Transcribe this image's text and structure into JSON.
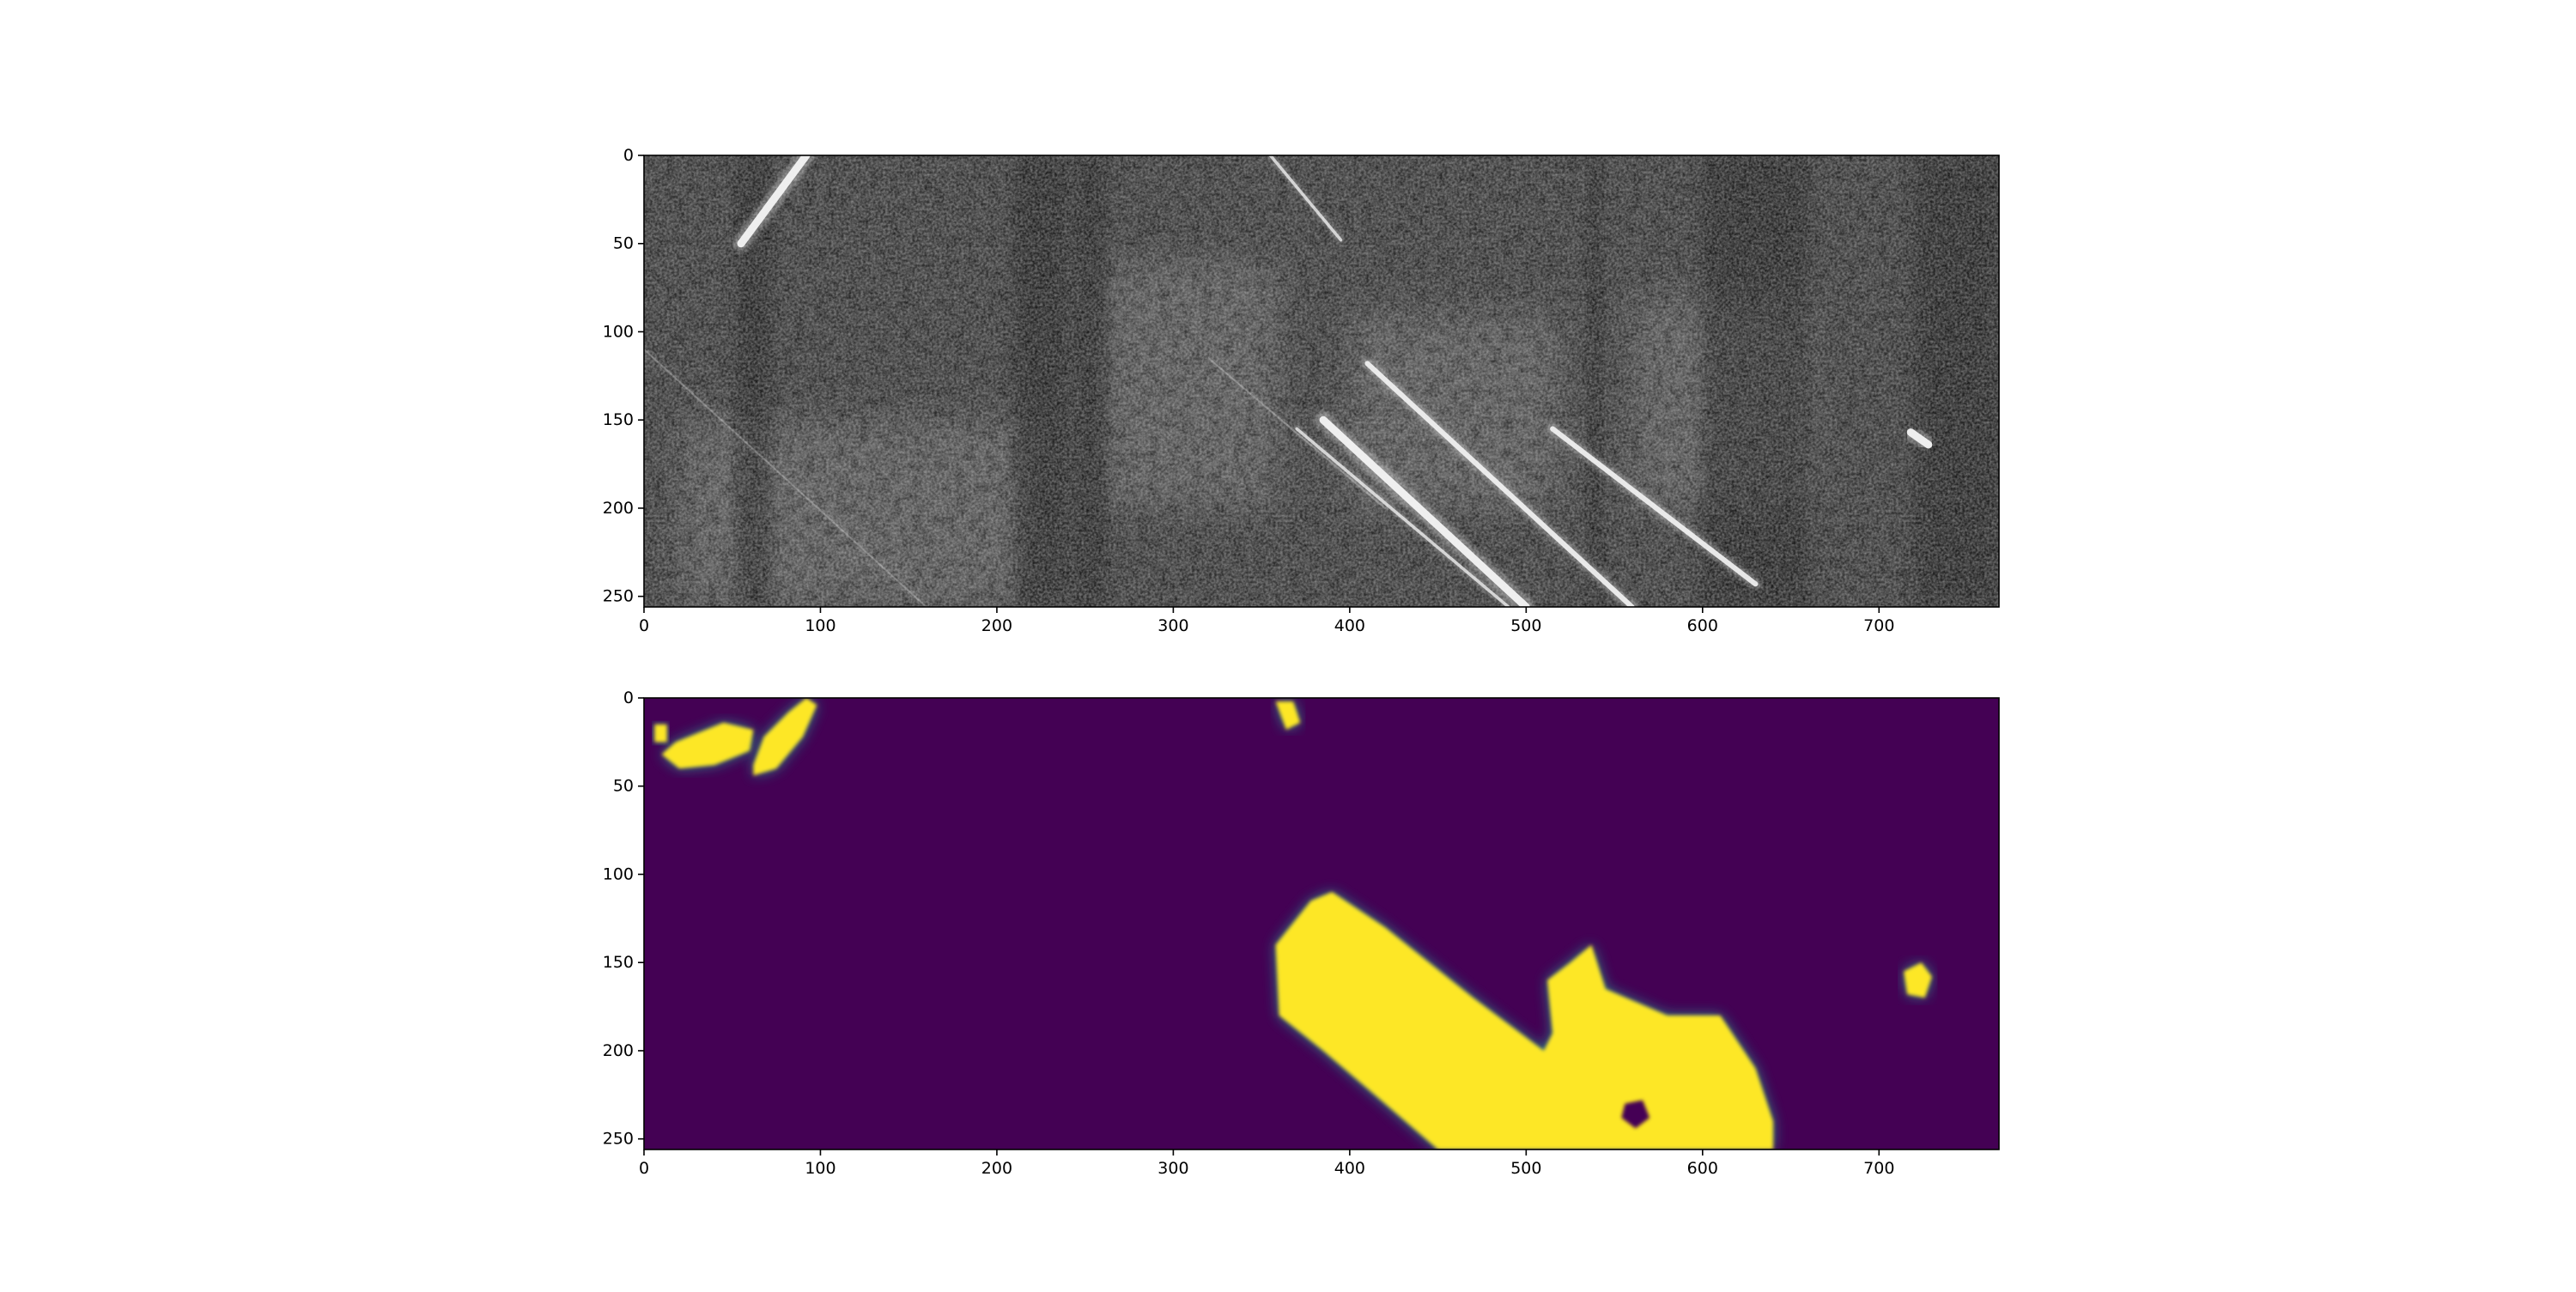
{
  "figure": {
    "background": "#ffffff"
  },
  "chart_data": [
    {
      "type": "heatmap",
      "title": "",
      "xlabel": "",
      "ylabel": "",
      "colormap": "gray",
      "xlim": [
        0,
        768
      ],
      "ylim": [
        256,
        0
      ],
      "x_ticks": [
        "0",
        "100",
        "200",
        "300",
        "400",
        "500",
        "600",
        "700"
      ],
      "y_ticks": [
        "0",
        "50",
        "100",
        "150",
        "200",
        "250"
      ],
      "colors": {
        "base": "#3a3a3a",
        "dark_band": "#1e1e1e",
        "light_patch": "#6a6a6a",
        "scratch": "#f5f5f5"
      },
      "dark_bands_x": [
        [
          52,
          72
        ],
        [
          210,
          240
        ],
        [
          245,
          262
        ],
        [
          535,
          543
        ],
        [
          600,
          660
        ],
        [
          720,
          768
        ]
      ],
      "light_regions": [
        {
          "x": [
            20,
            220
          ],
          "y": [
            150,
            256
          ]
        },
        {
          "x": [
            260,
            360
          ],
          "y": [
            60,
            200
          ]
        },
        {
          "x": [
            400,
            520
          ],
          "y": [
            90,
            200
          ]
        },
        {
          "x": [
            560,
            660
          ],
          "y": [
            80,
            200
          ]
        }
      ],
      "scratches": [
        {
          "from": [
            92,
            0
          ],
          "to": [
            55,
            50
          ],
          "weight": "bold"
        },
        {
          "from": [
            355,
            0
          ],
          "to": [
            395,
            48
          ],
          "weight": "light"
        },
        {
          "from": [
            385,
            150
          ],
          "to": [
            500,
            256
          ],
          "weight": "bold"
        },
        {
          "from": [
            410,
            118
          ],
          "to": [
            560,
            256
          ],
          "weight": "medium"
        },
        {
          "from": [
            370,
            155
          ],
          "to": [
            490,
            256
          ],
          "weight": "light"
        },
        {
          "from": [
            515,
            155
          ],
          "to": [
            630,
            243
          ],
          "weight": "medium"
        },
        {
          "from": [
            718,
            157
          ],
          "to": [
            728,
            164
          ],
          "weight": "bold"
        },
        {
          "from": [
            0,
            110
          ],
          "to": [
            160,
            256
          ],
          "weight": "faint"
        },
        {
          "from": [
            320,
            115
          ],
          "to": [
            420,
            200
          ],
          "weight": "faint"
        }
      ]
    },
    {
      "type": "heatmap",
      "title": "",
      "xlabel": "",
      "ylabel": "",
      "colormap": "viridis",
      "xlim": [
        0,
        768
      ],
      "ylim": [
        256,
        0
      ],
      "x_ticks": [
        "0",
        "100",
        "200",
        "300",
        "400",
        "500",
        "600",
        "700"
      ],
      "y_ticks": [
        "0",
        "50",
        "100",
        "150",
        "200",
        "250"
      ],
      "colors": {
        "low": "#440154",
        "mid": "#21918c",
        "high": "#fde725"
      },
      "blobs": [
        {
          "points": [
            [
              18,
              25
            ],
            [
              45,
              14
            ],
            [
              62,
              18
            ],
            [
              60,
              30
            ],
            [
              40,
              38
            ],
            [
              20,
              40
            ],
            [
              10,
              32
            ]
          ]
        },
        {
          "points": [
            [
              62,
              38
            ],
            [
              68,
              22
            ],
            [
              82,
              8
            ],
            [
              92,
              0
            ],
            [
              98,
              4
            ],
            [
              90,
              22
            ],
            [
              75,
              40
            ],
            [
              62,
              44
            ]
          ]
        },
        {
          "points": [
            [
              6,
              15
            ],
            [
              13,
              15
            ],
            [
              13,
              25
            ],
            [
              6,
              25
            ]
          ]
        },
        {
          "points": [
            [
              358,
              2
            ],
            [
              368,
              2
            ],
            [
              372,
              14
            ],
            [
              364,
              18
            ]
          ]
        },
        {
          "points": [
            [
              358,
              140
            ],
            [
              378,
              115
            ],
            [
              390,
              110
            ],
            [
              420,
              130
            ],
            [
              470,
              170
            ],
            [
              510,
              200
            ],
            [
              515,
              190
            ],
            [
              512,
              160
            ],
            [
              525,
              150
            ],
            [
              537,
              140
            ],
            [
              545,
              165
            ],
            [
              580,
              180
            ],
            [
              610,
              180
            ],
            [
              630,
              210
            ],
            [
              640,
              240
            ],
            [
              640,
              256
            ],
            [
              450,
              256
            ],
            [
              420,
              230
            ],
            [
              385,
              200
            ],
            [
              360,
              180
            ]
          ]
        },
        {
          "points": [
            [
              714,
              155
            ],
            [
              724,
              150
            ],
            [
              730,
              158
            ],
            [
              726,
              170
            ],
            [
              716,
              168
            ]
          ]
        }
      ],
      "holes": [
        {
          "points": [
            [
              556,
              230
            ],
            [
              566,
              228
            ],
            [
              570,
              238
            ],
            [
              562,
              244
            ],
            [
              554,
              238
            ]
          ]
        }
      ]
    }
  ]
}
